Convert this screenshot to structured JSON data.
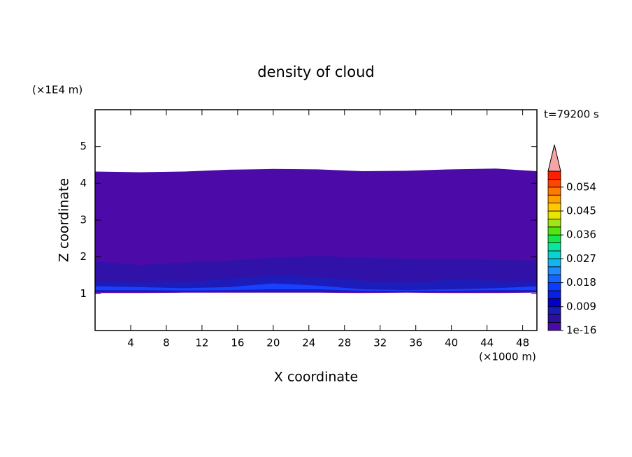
{
  "chart_data": {
    "type": "contour",
    "title": "density of cloud",
    "xlabel": "X coordinate",
    "ylabel": "Z coordinate",
    "xunit": "(×1000 m)",
    "yunit": "(×1E4 m)",
    "annotation": "t=79200 s",
    "xlim": [
      0,
      49.6
    ],
    "ylim": [
      0,
      6
    ],
    "xticks": [
      4,
      8,
      12,
      16,
      20,
      24,
      28,
      32,
      36,
      40,
      44,
      48
    ],
    "yticks": [
      1,
      2,
      3,
      4,
      5
    ],
    "x": [
      0,
      5,
      10,
      15,
      20,
      25,
      30,
      35,
      40,
      45,
      49.6
    ],
    "regions": [
      {
        "color": "#4c0aa8",
        "top": [
          4.32,
          4.3,
          4.32,
          4.37,
          4.39,
          4.38,
          4.33,
          4.34,
          4.38,
          4.4,
          4.33
        ],
        "bottom": [
          1.02,
          1.02,
          1.03,
          1.03,
          1.03,
          1.03,
          1.02,
          1.03,
          1.02,
          1.02,
          1.03
        ]
      },
      {
        "color": "#3012a8",
        "top": [
          1.88,
          1.78,
          1.85,
          1.9,
          1.98,
          2.02,
          1.98,
          1.95,
          1.95,
          1.92,
          1.9
        ],
        "bottom": [
          1.05,
          1.05,
          1.05,
          1.05,
          1.05,
          1.05,
          1.05,
          1.05,
          1.05,
          1.05,
          1.05
        ]
      },
      {
        "color": "#1c1cba",
        "top": [
          1.35,
          1.3,
          1.32,
          1.4,
          1.5,
          1.45,
          1.35,
          1.3,
          1.38,
          1.35,
          1.3
        ],
        "bottom": [
          1.06,
          1.06,
          1.06,
          1.06,
          1.06,
          1.06,
          1.06,
          1.06,
          1.06,
          1.06,
          1.06
        ]
      },
      {
        "color": "#1a40ff",
        "top": [
          1.2,
          1.18,
          1.15,
          1.18,
          1.28,
          1.22,
          1.12,
          1.1,
          1.12,
          1.15,
          1.2
        ],
        "bottom": [
          1.1,
          1.1,
          1.09,
          1.1,
          1.12,
          1.12,
          1.08,
          1.08,
          1.08,
          1.1,
          1.1
        ]
      }
    ],
    "colorbar": {
      "clim": [
        0,
        0.06
      ],
      "colors": [
        "#4b0aa8",
        "#2c0fa0",
        "#1a1ab4",
        "#0000c8",
        "#0a1ee6",
        "#0a3cff",
        "#1464ff",
        "#1e8cff",
        "#14b4f0",
        "#0ad2d2",
        "#0ae6a0",
        "#14e650",
        "#50e614",
        "#a0e614",
        "#e6e600",
        "#ffc800",
        "#ffa000",
        "#ff7800",
        "#ff4600",
        "#ff1e00"
      ],
      "extend_color": "#f5a5a5",
      "ticks": [
        {
          "value": 1e-16,
          "label": "1e-16"
        },
        0.009,
        0.018,
        0.027,
        0.036,
        0.045,
        0.054
      ]
    }
  }
}
